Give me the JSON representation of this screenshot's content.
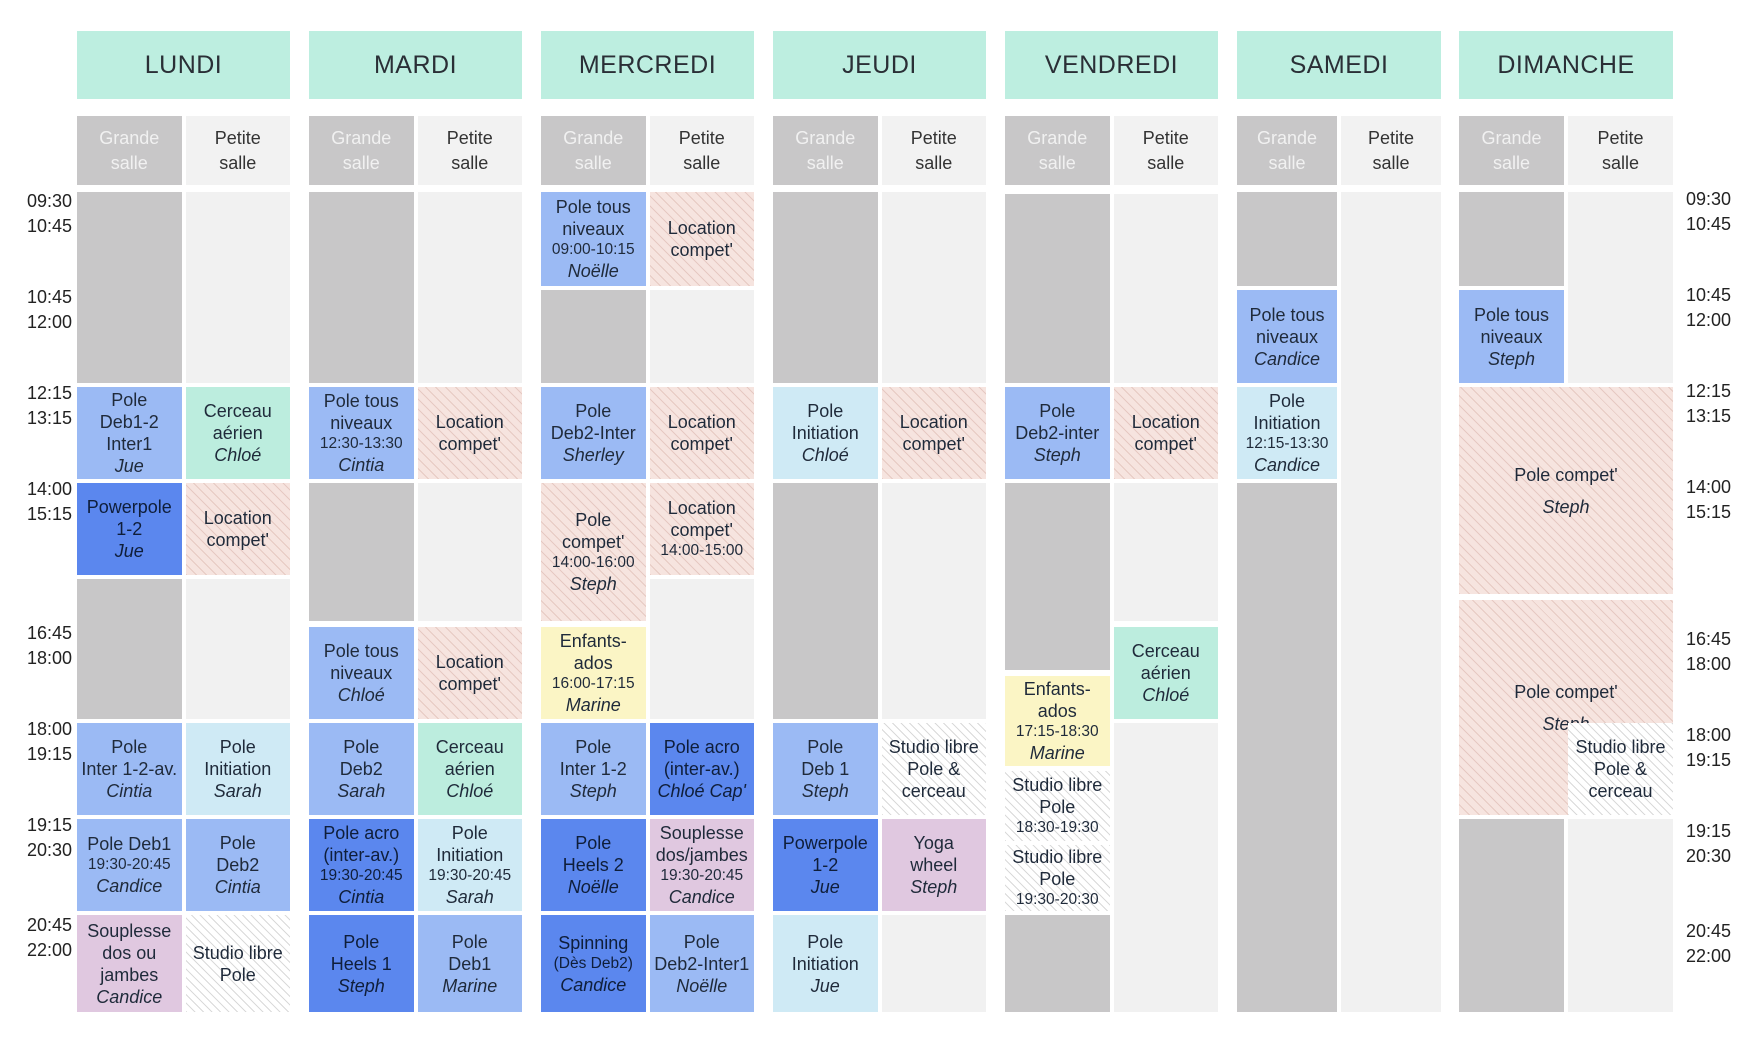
{
  "days": [
    "LUNDI",
    "MARDI",
    "MERCREDI",
    "JEUDI",
    "VENDREDI",
    "SAMEDI",
    "DIMANCHE"
  ],
  "rooms": {
    "grande": "Grande\nsalle",
    "petite": "Petite\nsalle"
  },
  "times_left": [
    [
      "09:30",
      "10:45"
    ],
    [
      "10:45",
      "12:00"
    ],
    [
      "12:15",
      "13:15"
    ],
    [
      "14:00",
      "15:15"
    ],
    [
      "16:45",
      "18:00"
    ],
    [
      "18:00",
      "19:15"
    ],
    [
      "19:15",
      "20:30"
    ],
    [
      "20:45",
      "22:00"
    ]
  ],
  "times_right": [
    [
      "09:30",
      "10:45"
    ],
    [
      "10:45",
      "12:00"
    ],
    [
      "12:15",
      "13:15"
    ],
    [
      "14:00",
      "15:15"
    ],
    [
      "16:45",
      "18:00"
    ],
    [
      "18:00",
      "19:15"
    ],
    [
      "19:15",
      "20:30"
    ],
    [
      "20:45",
      "22:00"
    ]
  ],
  "classes": {
    "lundi_1215_g": [
      "Pole\nDeb1-2\nInter1",
      "",
      "Jue"
    ],
    "lundi_1215_p": [
      "Cerceau\naérien",
      "",
      "Chloé"
    ],
    "lundi_1400_g": [
      "Powerpole\n1-2",
      "",
      "Jue"
    ],
    "lundi_1400_p": [
      "Location\ncompet'",
      "",
      ""
    ],
    "lundi_1800_g": [
      "Pole\nInter 1-2-av.",
      "",
      "Cintia"
    ],
    "lundi_1800_p": [
      "Pole\nInitiation",
      "",
      "Sarah"
    ],
    "lundi_1915_g": [
      "Pole Deb1",
      "19:30-20:45",
      "Candice"
    ],
    "lundi_1915_p": [
      "Pole\nDeb2",
      "",
      "Cintia"
    ],
    "lundi_2045_g": [
      "Souplesse\ndos ou\njambes",
      "",
      "Candice"
    ],
    "lundi_2045_p": [
      "Studio libre\nPole",
      "",
      ""
    ],
    "mardi_1215_g": [
      "Pole tous\nniveaux",
      "12:30-13:30",
      "Cintia"
    ],
    "mardi_1215_p": [
      "Location\ncompet'",
      "",
      ""
    ],
    "mardi_1645_g": [
      "Pole tous\nniveaux",
      "",
      "Chloé"
    ],
    "mardi_1645_p": [
      "Location\ncompet'",
      "",
      ""
    ],
    "mardi_1800_g": [
      "Pole\nDeb2",
      "",
      "Sarah"
    ],
    "mardi_1800_p": [
      "Cerceau\naérien",
      "",
      "Chloé"
    ],
    "mardi_1915_g": [
      "Pole acro\n(inter-av.)",
      "19:30-20:45",
      "Cintia"
    ],
    "mardi_1915_p": [
      "Pole\nInitiation",
      "19:30-20:45",
      "Sarah"
    ],
    "mardi_2045_g": [
      "Pole\nHeels 1",
      "",
      "Steph"
    ],
    "mardi_2045_p": [
      "Pole\nDeb1",
      "",
      "Marine"
    ],
    "mercredi_0930_g": [
      "Pole tous\nniveaux",
      "09:00-10:15",
      "Noëlle"
    ],
    "mercredi_0930_p": [
      "Location\ncompet'",
      "",
      ""
    ],
    "mercredi_1215_g": [
      "Pole\nDeb2-Inter",
      "",
      "Sherley"
    ],
    "mercredi_1215_p": [
      "Location\ncompet'",
      "",
      ""
    ],
    "mercredi_1400_g": [
      "Pole\ncompet'",
      "14:00-16:00",
      "Steph"
    ],
    "mercredi_1400_p": [
      "Location\ncompet'",
      "14:00-15:00",
      ""
    ],
    "mercredi_1645_g": [
      "Enfants-\nados",
      "16:00-17:15",
      "Marine"
    ],
    "mercredi_1800_g": [
      "Pole\nInter 1-2",
      "",
      "Steph"
    ],
    "mercredi_1800_p": [
      "Pole acro\n(inter-av.)",
      "",
      "Chloé Cap'"
    ],
    "mercredi_1915_g": [
      "Pole\nHeels 2",
      "",
      "Noëlle"
    ],
    "mercredi_1915_p": [
      "Souplesse\ndos/jambes",
      "19:30-20:45",
      "Candice"
    ],
    "mercredi_2045_g": [
      "Spinning",
      "(Dès Deb2)",
      "Candice"
    ],
    "mercredi_2045_p": [
      "Pole\nDeb2-Inter1",
      "",
      "Noëlle"
    ],
    "jeudi_1215_g": [
      "Pole\nInitiation",
      "",
      "Chloé"
    ],
    "jeudi_1215_p": [
      "Location\ncompet'",
      "",
      ""
    ],
    "jeudi_1800_g": [
      "Pole\nDeb 1",
      "",
      "Steph"
    ],
    "jeudi_1800_p": [
      "Studio libre\nPole &\ncerceau",
      "",
      ""
    ],
    "jeudi_1915_g": [
      "Powerpole\n1-2",
      "",
      "Jue"
    ],
    "jeudi_1915_p": [
      "Yoga\nwheel",
      "",
      "Steph"
    ],
    "jeudi_2045_g": [
      "Pole\nInitiation",
      "",
      "Jue"
    ],
    "vendredi_1215_g": [
      "Pole\nDeb2-inter",
      "",
      "Steph"
    ],
    "vendredi_1215_p": [
      "Location\ncompet'",
      "",
      ""
    ],
    "vendredi_1645_p": [
      "Cerceau\naérien",
      "",
      "Chloé"
    ],
    "vendredi_1715_g": [
      "Enfants-\nados",
      "17:15-18:30",
      "Marine"
    ],
    "vendredi_1830_g": [
      "Studio libre\nPole",
      "18:30-19:30",
      ""
    ],
    "vendredi_1930_g": [
      "Studio libre\nPole",
      "19:30-20:30",
      ""
    ],
    "samedi_1045_g": [
      "Pole tous\nniveaux",
      "",
      "Candice"
    ],
    "samedi_1215_g": [
      "Pole\nInitiation",
      "12:15-13:30",
      "Candice"
    ],
    "dimanche_1045_g": [
      "Pole tous\nniveaux",
      "",
      "Steph"
    ],
    "dimanche_1215": [
      "Pole compet'",
      "",
      "Steph"
    ],
    "dimanche_1645": [
      "Pole compet'",
      "",
      "Steph"
    ],
    "dimanche_1800_p": [
      "Studio libre\nPole &\ncerceau",
      "",
      ""
    ]
  },
  "colors": {
    "header": "#bdeee0",
    "grande": "#c8c7c8",
    "petite": "#f2f2f2",
    "blue": "#9bbaf4",
    "dark_blue": "#5b87ee",
    "light_blue": "#cfeaf5",
    "mint": "#bcedde",
    "yellow": "#fbf5c5",
    "pink": "#e0c8e0",
    "location_hatch": "#f6e4df"
  }
}
